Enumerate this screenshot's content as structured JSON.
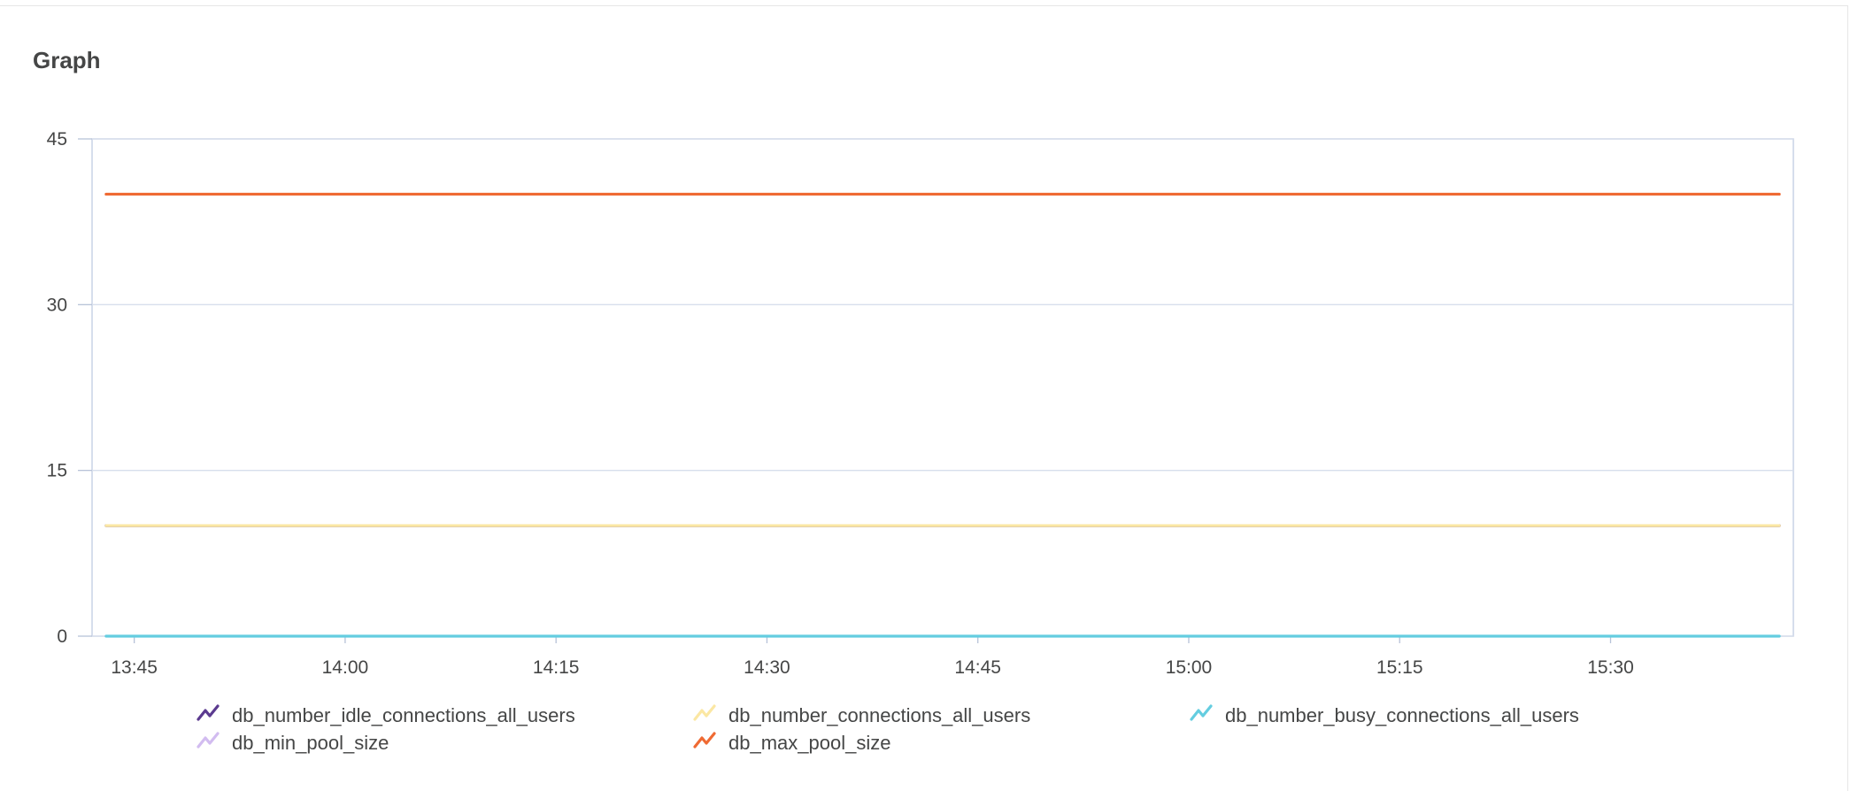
{
  "panel": {
    "title": "Graph"
  },
  "chart_data": {
    "type": "line",
    "title": "",
    "xlabel": "",
    "ylabel": "",
    "ylim": [
      0,
      45
    ],
    "y_ticks": [
      0,
      15,
      30,
      45
    ],
    "x_range": [
      "13:42",
      "15:43"
    ],
    "x_ticks": [
      "13:45",
      "14:00",
      "14:15",
      "14:30",
      "14:45",
      "15:00",
      "15:15",
      "15:30"
    ],
    "grid": "horizontal",
    "legend_position": "bottom",
    "series": [
      {
        "name": "db_number_idle_connections_all_users",
        "color": "#5b3a8f",
        "x": [
          "13:43",
          "15:42"
        ],
        "values": [
          10,
          10
        ]
      },
      {
        "name": "db_number_connections_all_users",
        "color": "#fbe7a3",
        "x": [
          "13:43",
          "15:42"
        ],
        "values": [
          10,
          10
        ]
      },
      {
        "name": "db_number_busy_connections_all_users",
        "color": "#64cde0",
        "x": [
          "13:43",
          "15:42"
        ],
        "values": [
          0,
          0
        ]
      },
      {
        "name": "db_min_pool_size",
        "color": "#d2bcf0",
        "x": [
          "13:43",
          "15:42"
        ],
        "values": [
          10,
          10
        ]
      },
      {
        "name": "db_max_pool_size",
        "color": "#ef6a33",
        "x": [
          "13:43",
          "15:42"
        ],
        "values": [
          40,
          40
        ]
      }
    ]
  }
}
